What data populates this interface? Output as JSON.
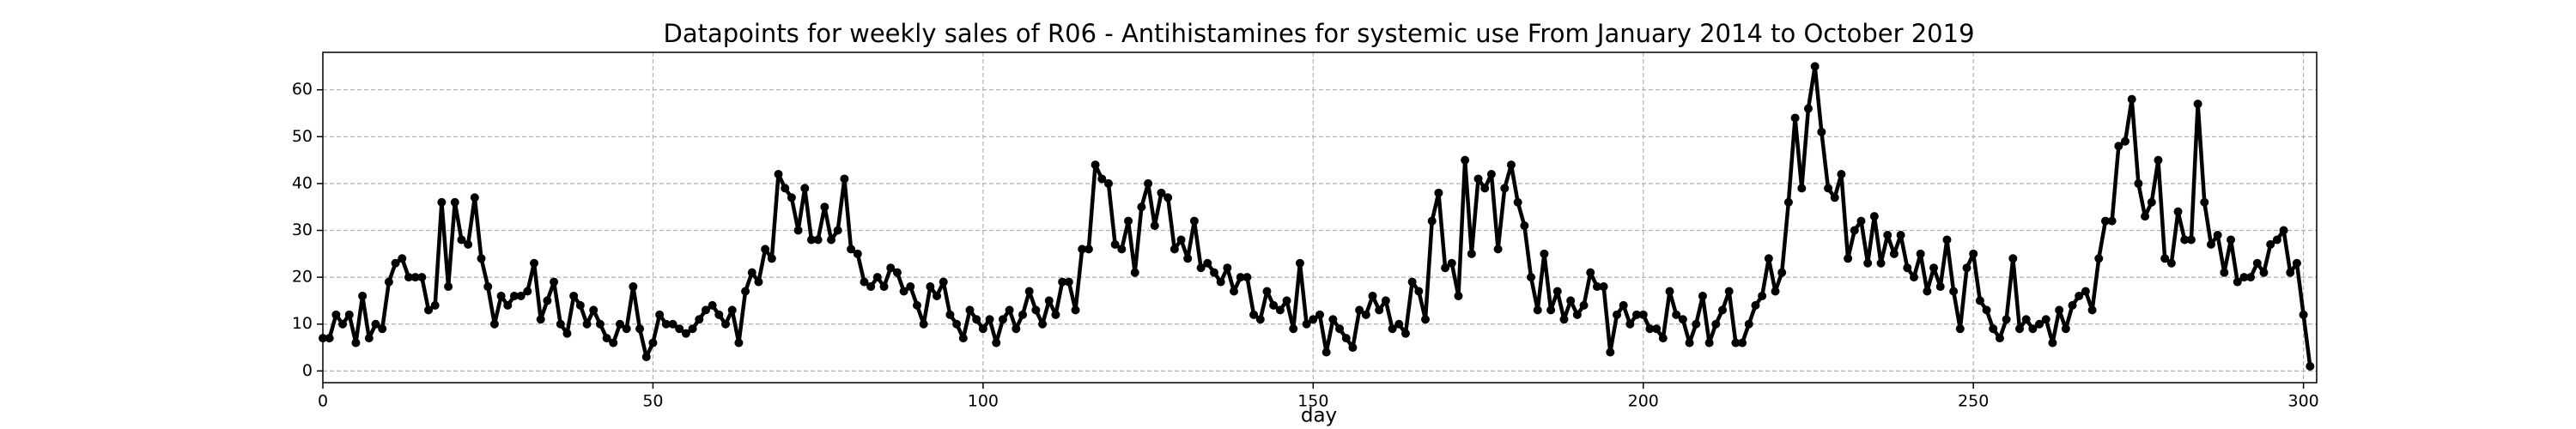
{
  "chart_data": {
    "type": "line",
    "title": "Datapoints for weekly sales of R06 - Antihistamines for systemic use From January 2014 to October 2019",
    "xlabel": "day",
    "x": [
      0,
      1,
      2,
      3,
      4,
      5,
      6,
      7,
      8,
      9,
      10,
      11,
      12,
      13,
      14,
      15,
      16,
      17,
      18,
      19,
      20,
      21,
      22,
      23,
      24,
      25,
      26,
      27,
      28,
      29,
      30,
      31,
      32,
      33,
      34,
      35,
      36,
      37,
      38,
      39,
      40,
      41,
      42,
      43,
      44,
      45,
      46,
      47,
      48,
      49,
      50,
      51,
      52,
      53,
      54,
      55,
      56,
      57,
      58,
      59,
      60,
      61,
      62,
      63,
      64,
      65,
      66,
      67,
      68,
      69,
      70,
      71,
      72,
      73,
      74,
      75,
      76,
      77,
      78,
      79,
      80,
      81,
      82,
      83,
      84,
      85,
      86,
      87,
      88,
      89,
      90,
      91,
      92,
      93,
      94,
      95,
      96,
      97,
      98,
      99,
      100,
      101,
      102,
      103,
      104,
      105,
      106,
      107,
      108,
      109,
      110,
      111,
      112,
      113,
      114,
      115,
      116,
      117,
      118,
      119,
      120,
      121,
      122,
      123,
      124,
      125,
      126,
      127,
      128,
      129,
      130,
      131,
      132,
      133,
      134,
      135,
      136,
      137,
      138,
      139,
      140,
      141,
      142,
      143,
      144,
      145,
      146,
      147,
      148,
      149,
      150,
      151,
      152,
      153,
      154,
      155,
      156,
      157,
      158,
      159,
      160,
      161,
      162,
      163,
      164,
      165,
      166,
      167,
      168,
      169,
      170,
      171,
      172,
      173,
      174,
      175,
      176,
      177,
      178,
      179,
      180,
      181,
      182,
      183,
      184,
      185,
      186,
      187,
      188,
      189,
      190,
      191,
      192,
      193,
      194,
      195,
      196,
      197,
      198,
      199,
      200,
      201,
      202,
      203,
      204,
      205,
      206,
      207,
      208,
      209,
      210,
      211,
      212,
      213,
      214,
      215,
      216,
      217,
      218,
      219,
      220,
      221,
      222,
      223,
      224,
      225,
      226,
      227,
      228,
      229,
      230,
      231,
      232,
      233,
      234,
      235,
      236,
      237,
      238,
      239,
      240,
      241,
      242,
      243,
      244,
      245,
      246,
      247,
      248,
      249,
      250,
      251,
      252,
      253,
      254,
      255,
      256,
      257,
      258,
      259,
      260,
      261,
      262,
      263,
      264,
      265,
      266,
      267,
      268,
      269,
      270,
      271,
      272,
      273,
      274,
      275,
      276,
      277,
      278,
      279,
      280,
      281,
      282,
      283,
      284,
      285,
      286,
      287,
      288,
      289,
      290,
      291,
      292,
      293,
      294,
      295,
      296,
      297,
      298,
      299,
      300,
      301
    ],
    "series": [
      {
        "color": "#000000",
        "values": [
          7,
          7,
          12,
          10,
          12,
          6,
          16,
          7,
          10,
          9,
          19,
          23,
          24,
          20,
          20,
          20,
          13,
          14,
          36,
          18,
          36,
          28,
          27,
          37,
          24,
          18,
          10,
          16,
          14,
          16,
          16,
          17,
          23,
          11,
          15,
          19,
          10,
          8,
          16,
          14,
          10,
          13,
          10,
          7,
          6,
          10,
          9,
          18,
          9,
          3,
          6,
          12,
          10,
          10,
          9,
          8,
          9,
          11,
          13,
          14,
          12,
          10,
          13,
          6,
          17,
          21,
          19,
          26,
          24,
          42,
          39,
          37,
          30,
          39,
          28,
          28,
          35,
          28,
          30,
          41,
          26,
          25,
          19,
          18,
          20,
          18,
          22,
          21,
          17,
          18,
          14,
          10,
          18,
          16,
          19,
          12,
          10,
          7,
          13,
          11,
          9,
          11,
          6,
          11,
          13,
          9,
          12,
          17,
          13,
          10,
          15,
          12,
          19,
          19,
          13,
          26,
          26,
          44,
          41,
          40,
          27,
          26,
          32,
          21,
          35,
          40,
          31,
          38,
          37,
          26,
          28,
          24,
          32,
          22,
          23,
          21,
          19,
          22,
          17,
          20,
          20,
          12,
          11,
          17,
          14,
          13,
          15,
          9,
          23,
          10,
          11,
          12,
          4,
          11,
          9,
          7,
          5,
          13,
          12,
          16,
          13,
          15,
          9,
          10,
          8,
          19,
          17,
          11,
          32,
          38,
          22,
          23,
          16,
          45,
          25,
          41,
          39,
          42,
          26,
          39,
          44,
          36,
          31,
          20,
          13,
          25,
          13,
          17,
          11,
          15,
          12,
          14,
          21,
          18,
          18,
          4,
          12,
          14,
          10,
          12,
          12,
          9,
          9,
          7,
          17,
          12,
          11,
          6,
          10,
          16,
          6,
          10,
          13,
          17,
          6,
          6,
          10,
          14,
          16,
          24,
          17,
          21,
          36,
          54,
          39,
          56,
          65,
          51,
          39,
          37,
          42,
          24,
          30,
          32,
          23,
          33,
          23,
          29,
          25,
          29,
          22,
          20,
          25,
          17,
          22,
          18,
          28,
          17,
          9,
          22,
          25,
          15,
          13,
          9,
          7,
          11,
          24,
          9,
          11,
          9,
          10,
          11,
          6,
          13,
          9,
          14,
          16,
          17,
          13,
          24,
          32,
          32,
          48,
          49,
          58,
          40,
          33,
          36,
          45,
          24,
          23,
          34,
          28,
          28,
          57,
          36,
          27,
          29,
          21,
          28,
          19,
          20,
          20,
          23,
          21,
          27,
          28,
          30,
          21,
          23,
          12,
          1
        ]
      }
    ],
    "xlim": [
      0,
      302
    ],
    "ylim": [
      -2.5,
      68
    ],
    "xticks": [
      0,
      50,
      100,
      150,
      200,
      250,
      300
    ],
    "yticks": [
      0,
      10,
      20,
      30,
      40,
      50,
      60
    ],
    "grid": true
  }
}
